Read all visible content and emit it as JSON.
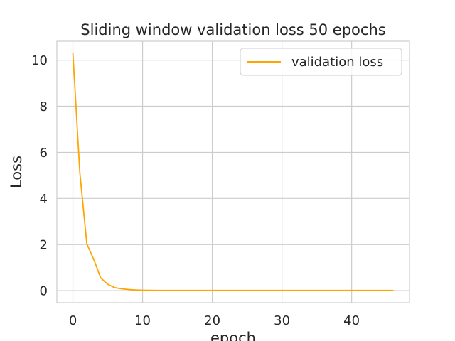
{
  "chart_data": {
    "type": "line",
    "title": "Sliding window validation loss 50 epochs",
    "xlabel": "epoch",
    "ylabel": "Loss",
    "xlim": [
      -2.3,
      48.3
    ],
    "ylim": [
      -0.52,
      10.82
    ],
    "xticks": [
      0,
      10,
      20,
      30,
      40
    ],
    "yticks": [
      0,
      2,
      4,
      6,
      8,
      10
    ],
    "grid": true,
    "legend_position": "top-right",
    "series": [
      {
        "name": "validation loss",
        "color": "#FFA500",
        "x": [
          0,
          1,
          2,
          3,
          4,
          5,
          6,
          7,
          8,
          9,
          10,
          11,
          12,
          13,
          14,
          15,
          16,
          17,
          18,
          19,
          20,
          21,
          22,
          23,
          24,
          25,
          26,
          27,
          28,
          29,
          30,
          31,
          32,
          33,
          34,
          35,
          36,
          37,
          38,
          39,
          40,
          41,
          42,
          43,
          44,
          45,
          46
        ],
        "y": [
          10.3,
          5.1,
          2.03,
          1.35,
          0.55,
          0.28,
          0.13,
          0.08,
          0.05,
          0.03,
          0.02,
          0.015,
          0.01,
          0.01,
          0.01,
          0.01,
          0.01,
          0.01,
          0.01,
          0.01,
          0.01,
          0.01,
          0.01,
          0.01,
          0.01,
          0.01,
          0.01,
          0.01,
          0.01,
          0.01,
          0.01,
          0.01,
          0.01,
          0.01,
          0.01,
          0.01,
          0.01,
          0.01,
          0.01,
          0.01,
          0.01,
          0.01,
          0.01,
          0.01,
          0.01,
          0.01,
          0.01
        ]
      }
    ]
  }
}
